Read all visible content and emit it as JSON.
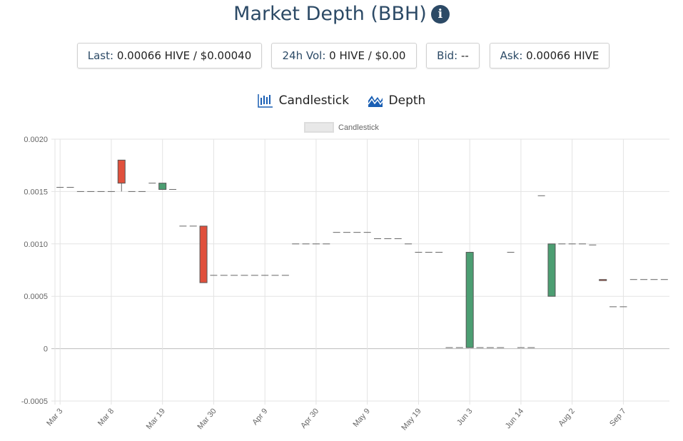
{
  "header": {
    "title": "Market Depth (BBH)",
    "info_icon": "info-circle-icon"
  },
  "stats": [
    {
      "label": "Last:",
      "value": "0.00066 HIVE / $0.00040"
    },
    {
      "label": "24h Vol:",
      "value": "0 HIVE / $0.00"
    },
    {
      "label": "Bid:",
      "value": "--"
    },
    {
      "label": "Ask:",
      "value": "0.00066 HIVE"
    }
  ],
  "tabs": [
    {
      "label": "Candlestick",
      "icon": "candlestick-icon"
    },
    {
      "label": "Depth",
      "icon": "depth-icon"
    }
  ],
  "colors": {
    "title": "#2c4a66",
    "up": "#4c9e72",
    "down": "#e0503c",
    "flat": "#666666"
  },
  "chart_data": {
    "type": "candlestick",
    "legend": [
      "Candlestick"
    ],
    "legend_position": "top",
    "ylim": [
      -0.0005,
      0.002
    ],
    "yticks": [
      "0.0020",
      "0.0015",
      "0.0010",
      "0.0005",
      "0",
      "-0.0005"
    ],
    "ytick_values": [
      0.002,
      0.0015,
      0.001,
      0.0005,
      0,
      -0.0005
    ],
    "xtick_labels": [
      "Mar 3",
      "Mar 8",
      "Mar 19",
      "Mar 30",
      "Apr 9",
      "Apr 30",
      "May 9",
      "May 19",
      "Jun 3",
      "Jun 14",
      "Aug 2",
      "Sep 7"
    ],
    "xtick_every": 5,
    "grid": true,
    "ohlc": [
      [
        0.00154,
        0.00154,
        0.00154,
        0.00154
      ],
      [
        0.00154,
        0.00154,
        0.00154,
        0.00154
      ],
      [
        0.0015,
        0.0015,
        0.0015,
        0.0015
      ],
      [
        0.0015,
        0.0015,
        0.0015,
        0.0015
      ],
      [
        0.0015,
        0.0015,
        0.0015,
        0.0015
      ],
      [
        0.0015,
        0.0015,
        0.0015,
        0.0015
      ],
      [
        0.0018,
        0.0018,
        0.0015,
        0.00158
      ],
      [
        0.0015,
        0.0015,
        0.0015,
        0.0015
      ],
      [
        0.0015,
        0.0015,
        0.0015,
        0.0015
      ],
      [
        0.00158,
        0.00158,
        0.00158,
        0.00158
      ],
      [
        0.00152,
        0.00158,
        0.00152,
        0.00158
      ],
      [
        0.00152,
        0.00152,
        0.00152,
        0.00152
      ],
      [
        0.00117,
        0.00117,
        0.00117,
        0.00117
      ],
      [
        0.00117,
        0.00117,
        0.00117,
        0.00117
      ],
      [
        0.00117,
        0.00117,
        0.00063,
        0.00063
      ],
      [
        0.0007,
        0.0007,
        0.0007,
        0.0007
      ],
      [
        0.0007,
        0.0007,
        0.0007,
        0.0007
      ],
      [
        0.0007,
        0.0007,
        0.0007,
        0.0007
      ],
      [
        0.0007,
        0.0007,
        0.0007,
        0.0007
      ],
      [
        0.0007,
        0.0007,
        0.0007,
        0.0007
      ],
      [
        0.0007,
        0.0007,
        0.0007,
        0.0007
      ],
      [
        0.0007,
        0.0007,
        0.0007,
        0.0007
      ],
      [
        0.0007,
        0.0007,
        0.0007,
        0.0007
      ],
      [
        0.001,
        0.001,
        0.001,
        0.001
      ],
      [
        0.001,
        0.001,
        0.001,
        0.001
      ],
      [
        0.001,
        0.001,
        0.001,
        0.001
      ],
      [
        0.001,
        0.001,
        0.001,
        0.001
      ],
      [
        0.00111,
        0.00111,
        0.00111,
        0.00111
      ],
      [
        0.00111,
        0.00111,
        0.00111,
        0.00111
      ],
      [
        0.00111,
        0.00111,
        0.00111,
        0.00111
      ],
      [
        0.00111,
        0.00111,
        0.00111,
        0.00111
      ],
      [
        0.00105,
        0.00105,
        0.00105,
        0.00105
      ],
      [
        0.00105,
        0.00105,
        0.00105,
        0.00105
      ],
      [
        0.00105,
        0.00105,
        0.00105,
        0.00105
      ],
      [
        0.001,
        0.001,
        0.001,
        0.001
      ],
      [
        0.00092,
        0.00092,
        0.00092,
        0.00092
      ],
      [
        0.00092,
        0.00092,
        0.00092,
        0.00092
      ],
      [
        0.00092,
        0.00092,
        0.00092,
        0.00092
      ],
      [
        1e-05,
        1e-05,
        1e-05,
        1e-05
      ],
      [
        1e-05,
        1e-05,
        1e-05,
        1e-05
      ],
      [
        1e-05,
        0.00092,
        1e-05,
        0.00092
      ],
      [
        1e-05,
        1e-05,
        1e-05,
        1e-05
      ],
      [
        1e-05,
        1e-05,
        1e-05,
        1e-05
      ],
      [
        1e-05,
        1e-05,
        1e-05,
        1e-05
      ],
      [
        0.00092,
        0.00092,
        0.00092,
        0.00092
      ],
      [
        1e-05,
        1e-05,
        1e-05,
        1e-05
      ],
      [
        1e-05,
        1e-05,
        1e-05,
        1e-05
      ],
      [
        0.00146,
        0.00146,
        0.00146,
        0.00146
      ],
      [
        0.0005,
        0.001,
        0.0005,
        0.001
      ],
      [
        0.001,
        0.001,
        0.001,
        0.001
      ],
      [
        0.001,
        0.001,
        0.001,
        0.001
      ],
      [
        0.001,
        0.001,
        0.001,
        0.001
      ],
      [
        0.00099,
        0.00099,
        0.00099,
        0.00099
      ],
      [
        0.00066,
        0.00066,
        0.00065,
        0.00065
      ],
      [
        0.0004,
        0.0004,
        0.0004,
        0.0004
      ],
      [
        0.0004,
        0.0004,
        0.0004,
        0.0004
      ],
      [
        0.00066,
        0.00066,
        0.00066,
        0.00066
      ],
      [
        0.00066,
        0.00066,
        0.00066,
        0.00066
      ],
      [
        0.00066,
        0.00066,
        0.00066,
        0.00066
      ],
      [
        0.00066,
        0.00066,
        0.00066,
        0.00066
      ]
    ]
  }
}
